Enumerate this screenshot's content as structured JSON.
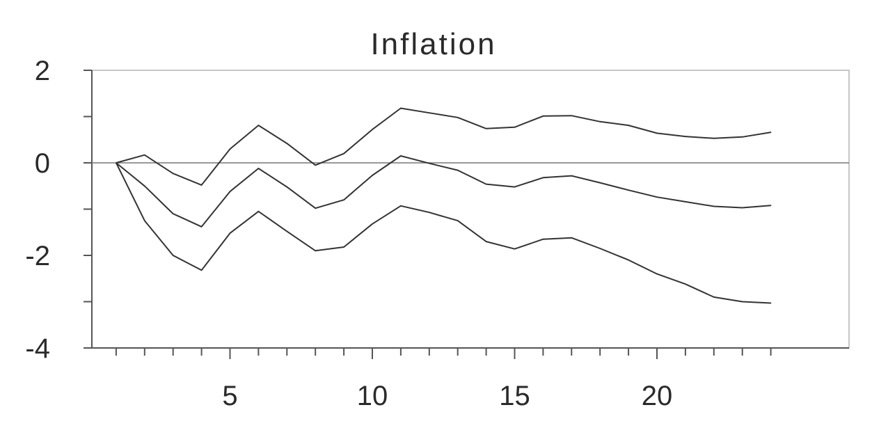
{
  "chart_data": {
    "type": "line",
    "title": "Inflation",
    "xlabel": "",
    "ylabel": "",
    "xlim": [
      0,
      24
    ],
    "ylim": [
      -4,
      2
    ],
    "x_major_ticks": [
      5,
      10,
      15,
      20
    ],
    "y_tick_labels": [
      2,
      0,
      -2,
      -4
    ],
    "y_minor_ticks": [
      1,
      -1,
      -3
    ],
    "zero_line": true,
    "grid": false,
    "legend": "none",
    "line_color": "#333333",
    "x": [
      1,
      2,
      3,
      4,
      5,
      6,
      7,
      8,
      9,
      10,
      11,
      12,
      13,
      14,
      15,
      16,
      17,
      18,
      19,
      20,
      21,
      22,
      23,
      24
    ],
    "series": [
      {
        "values": [
          0.0,
          0.17,
          -0.23,
          -0.48,
          0.3,
          0.81,
          0.42,
          -0.05,
          0.2,
          0.72,
          1.18,
          1.08,
          0.98,
          0.74,
          0.77,
          1.01,
          1.02,
          0.89,
          0.81,
          0.64,
          0.57,
          0.53,
          0.56,
          0.66
        ]
      },
      {
        "values": [
          0.0,
          -0.5,
          -1.1,
          -1.38,
          -0.62,
          -0.12,
          -0.52,
          -0.98,
          -0.8,
          -0.27,
          0.15,
          -0.01,
          -0.16,
          -0.46,
          -0.52,
          -0.32,
          -0.28,
          -0.43,
          -0.59,
          -0.74,
          -0.84,
          -0.94,
          -0.97,
          -0.92
        ]
      },
      {
        "values": [
          0.0,
          -1.25,
          -2.0,
          -2.32,
          -1.52,
          -1.05,
          -1.48,
          -1.9,
          -1.82,
          -1.32,
          -0.93,
          -1.07,
          -1.25,
          -1.7,
          -1.86,
          -1.65,
          -1.62,
          -1.85,
          -2.1,
          -2.4,
          -2.62,
          -2.9,
          -3.0,
          -3.03
        ]
      }
    ]
  }
}
